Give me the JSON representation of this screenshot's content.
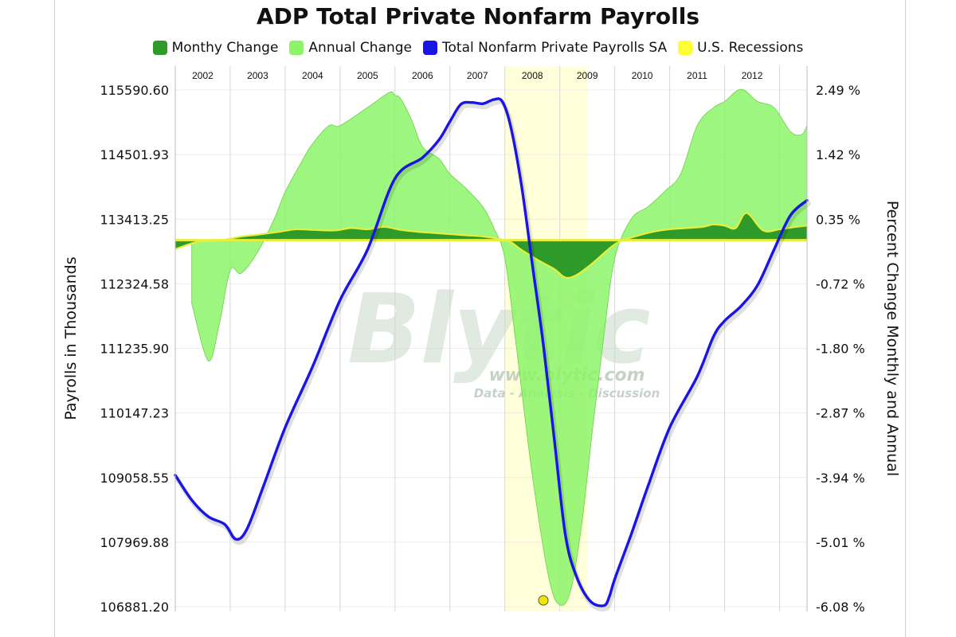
{
  "chart_data": {
    "type": "line",
    "title": "ADP Total Private Nonfarm Payrolls",
    "ylabel": "Payrolls in Thousands",
    "y2label": "Percent Change Monthly and Annual",
    "legend_position": "top",
    "years": [
      "2002",
      "2003",
      "2004",
      "2005",
      "2006",
      "2007",
      "2008",
      "2009",
      "2010",
      "2011",
      "2012"
    ],
    "ylim": [
      106881.2,
      115590.6
    ],
    "y_ticks": [
      "115590.60",
      "114501.93",
      "113413.25",
      "112324.58",
      "111235.90",
      "110147.23",
      "109058.55",
      "107969.88",
      "106881.20"
    ],
    "y2lim": [
      -6.08,
      2.49
    ],
    "y2_ticks": [
      "2.49 %",
      "1.42 %",
      "0.35 %",
      "-0.72 %",
      "-1.80 %",
      "-2.87 %",
      "-3.94 %",
      "-5.01 %",
      "-6.08 %"
    ],
    "x_range": [
      2002.0,
      2013.5
    ],
    "recession": {
      "start": 2008.0,
      "end": 2009.5
    },
    "grid": true,
    "watermark": {
      "logo": "Blytic",
      "url": "www.blytic.com",
      "tagline": "Data - Analysis - Discussion"
    },
    "series": [
      {
        "name": "Total Nonfarm Private Payrolls SA",
        "axis": "left",
        "color": "#1a14e6",
        "x": [
          2002.0,
          2002.3,
          2002.6,
          2002.9,
          2003.1,
          2003.3,
          2003.6,
          2004.0,
          2004.5,
          2005.0,
          2005.5,
          2006.0,
          2006.5,
          2006.8,
          2007.0,
          2007.2,
          2007.4,
          2007.6,
          2007.8,
          2007.95,
          2008.1,
          2008.3,
          2008.5,
          2008.7,
          2008.9,
          2009.1,
          2009.3,
          2009.55,
          2009.8,
          2009.9,
          2010.0,
          2010.3,
          2010.6,
          2011.0,
          2011.5,
          2011.8,
          2012.0,
          2012.3,
          2012.6,
          2012.9,
          2013.2,
          2013.5
        ],
        "y": [
          109100,
          108680,
          108400,
          108270,
          108020,
          108180,
          108900,
          109900,
          110930,
          112050,
          112900,
          114100,
          114450,
          114750,
          115060,
          115350,
          115380,
          115360,
          115430,
          115400,
          115000,
          114000,
          112650,
          111300,
          109700,
          108100,
          107400,
          106980,
          106900,
          107050,
          107350,
          108100,
          108900,
          109900,
          110760,
          111440,
          111700,
          111950,
          112300,
          112900,
          113480,
          113730
        ]
      },
      {
        "name": "Annual Change",
        "axis": "right",
        "color": "#8cf468",
        "x": [
          2002.3,
          2002.6,
          2002.8,
          2003.0,
          2003.2,
          2003.5,
          2003.8,
          2004.0,
          2004.3,
          2004.5,
          2004.8,
          2005.0,
          2005.5,
          2005.9,
          2006.0,
          2006.1,
          2006.3,
          2006.5,
          2006.8,
          2007.0,
          2007.3,
          2007.6,
          2007.8,
          2008.0,
          2008.2,
          2008.5,
          2008.8,
          2009.0,
          2009.2,
          2009.4,
          2009.6,
          2009.8,
          2010.0,
          2010.3,
          2010.6,
          2010.9,
          2011.2,
          2011.5,
          2011.8,
          2012.0,
          2012.3,
          2012.6,
          2012.9,
          2013.2,
          2013.4,
          2013.5
        ],
        "y": [
          -1.05,
          -2.0,
          -1.4,
          -0.5,
          -0.55,
          -0.2,
          0.35,
          0.8,
          1.3,
          1.6,
          1.9,
          1.9,
          2.2,
          2.45,
          2.4,
          2.35,
          2.0,
          1.55,
          1.35,
          1.1,
          0.85,
          0.55,
          0.2,
          -0.3,
          -1.7,
          -3.9,
          -5.6,
          -6.05,
          -5.8,
          -4.7,
          -3.1,
          -1.6,
          -0.3,
          0.35,
          0.55,
          0.8,
          1.1,
          1.9,
          2.2,
          2.3,
          2.5,
          2.3,
          2.2,
          1.8,
          1.75,
          1.9
        ]
      },
      {
        "name": "Monthy Change",
        "axis": "right",
        "color": "#2e9a2a",
        "x": [
          2002.0,
          2002.4,
          2002.8,
          2003.2,
          2003.5,
          2003.9,
          2004.2,
          2004.5,
          2004.9,
          2005.2,
          2005.5,
          2005.8,
          2006.1,
          2006.4,
          2006.7,
          2007.0,
          2007.3,
          2007.6,
          2007.9,
          2008.1,
          2008.3,
          2008.6,
          2008.9,
          2009.1,
          2009.3,
          2009.6,
          2009.9,
          2010.1,
          2010.4,
          2010.7,
          2011.0,
          2011.3,
          2011.6,
          2011.8,
          2012.0,
          2012.2,
          2012.4,
          2012.7,
          2013.0,
          2013.3,
          2013.5
        ],
        "y": [
          -0.15,
          -0.03,
          -0.01,
          0.06,
          0.09,
          0.14,
          0.18,
          0.17,
          0.16,
          0.2,
          0.18,
          0.22,
          0.17,
          0.14,
          0.12,
          0.1,
          0.08,
          0.06,
          0.02,
          -0.03,
          -0.16,
          -0.33,
          -0.48,
          -0.62,
          -0.58,
          -0.38,
          -0.14,
          -0.02,
          0.07,
          0.14,
          0.18,
          0.2,
          0.22,
          0.26,
          0.24,
          0.2,
          0.45,
          0.16,
          0.18,
          0.22,
          0.24
        ]
      },
      {
        "name": "U.S. Recessions",
        "axis": "right",
        "color": "#ffff33",
        "x": [
          2008.0,
          2009.5
        ],
        "y": [
          1,
          1
        ]
      }
    ]
  }
}
